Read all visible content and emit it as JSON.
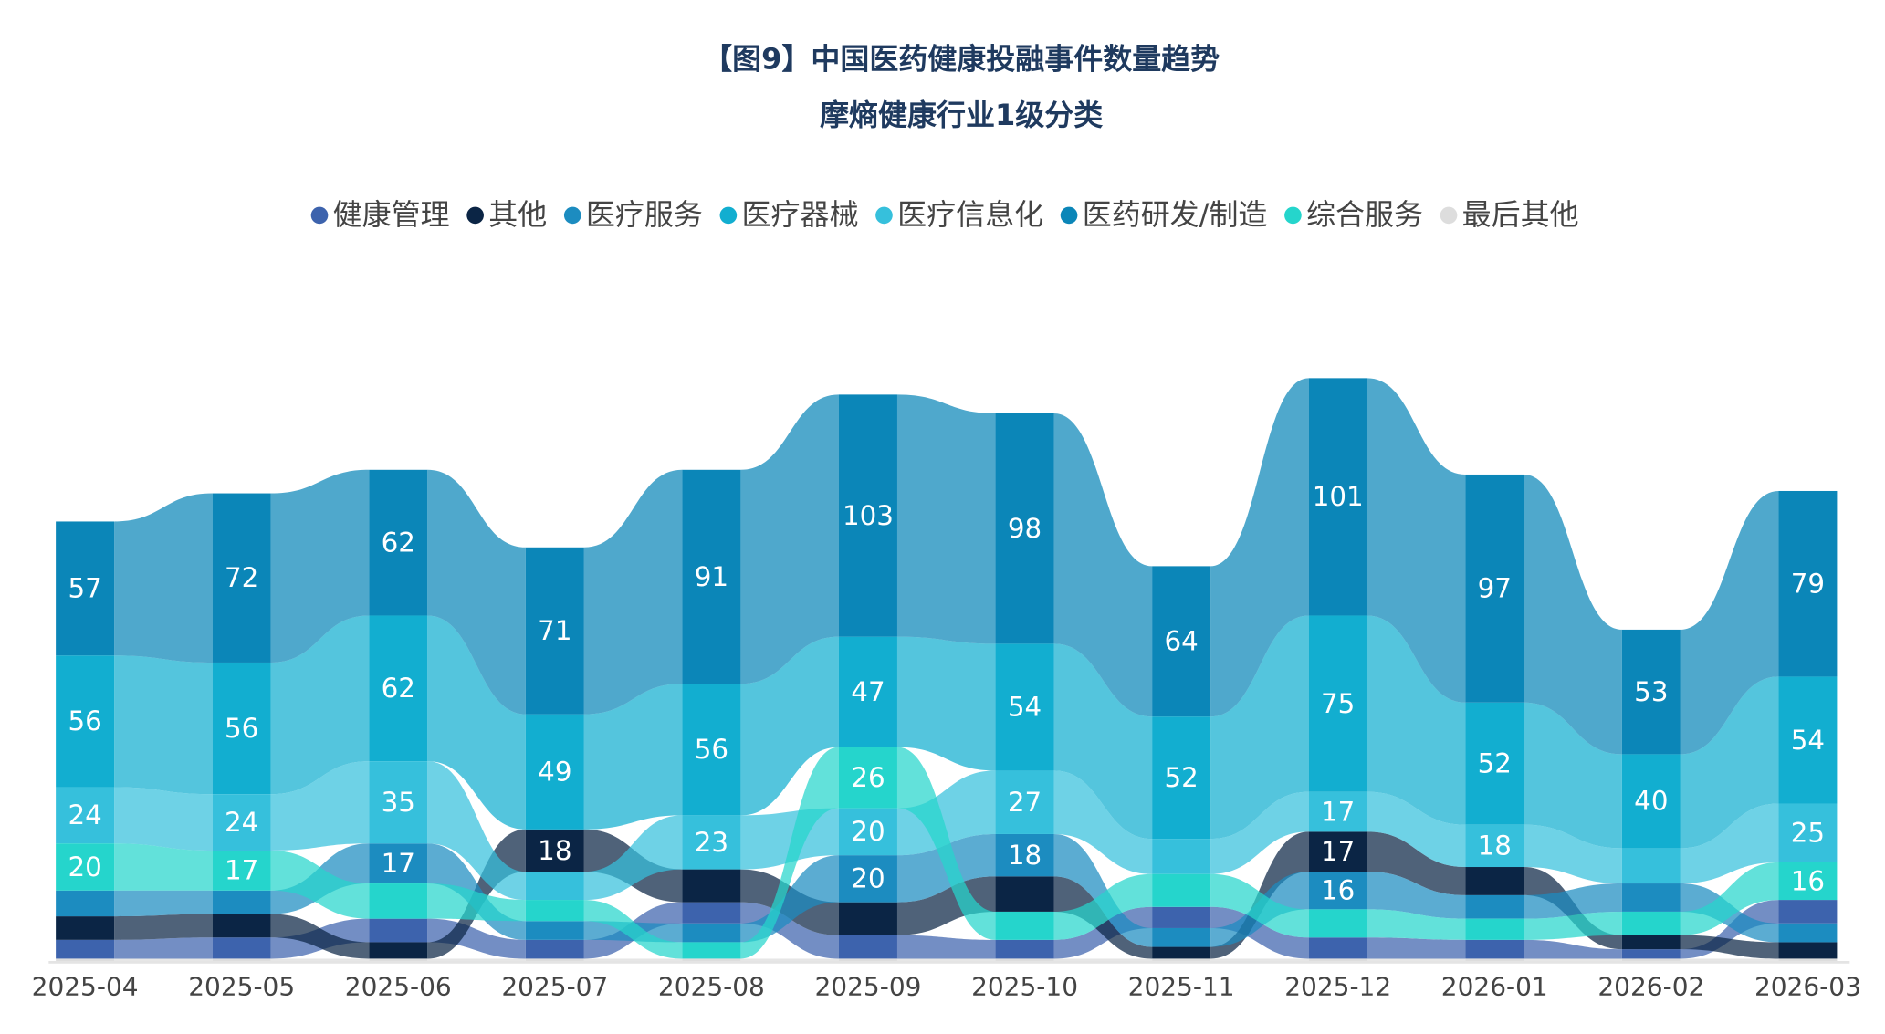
{
  "chart_data": {
    "type": "ribbon",
    "title": "【图9】中国医药健康投融事件数量趋势",
    "subtitle": "摩熵健康行业1级分类",
    "categories": [
      "2025-04",
      "2025-05",
      "2025-06",
      "2025-07",
      "2025-08",
      "2025-09",
      "2025-10",
      "2025-11",
      "2025-12",
      "2026-01",
      "2026-02",
      "2026-03"
    ],
    "ylim": [
      0,
      250
    ],
    "series": [
      {
        "name": "健康管理",
        "color": "#3d63ad",
        "values": [
          8,
          9,
          10,
          8,
          9,
          10,
          8,
          9,
          9,
          8,
          4,
          10
        ]
      },
      {
        "name": "其他",
        "color": "#0b2545",
        "values": [
          10,
          10,
          7,
          18,
          14,
          14,
          15,
          5,
          17,
          12,
          6,
          7
        ]
      },
      {
        "name": "医疗服务",
        "color": "#1c8cc0",
        "values": [
          11,
          10,
          17,
          8,
          8,
          20,
          18,
          8,
          16,
          10,
          12,
          8
        ]
      },
      {
        "name": "医疗器械",
        "color": "#12aed0",
        "values": [
          56,
          56,
          62,
          49,
          56,
          47,
          54,
          52,
          75,
          52,
          40,
          54
        ]
      },
      {
        "name": "医疗信息化",
        "color": "#36c0dc",
        "values": [
          24,
          24,
          35,
          12,
          23,
          20,
          27,
          15,
          17,
          18,
          15,
          25
        ]
      },
      {
        "name": "医药研发/制造",
        "color": "#0b86b8",
        "values": [
          57,
          72,
          62,
          71,
          91,
          103,
          98,
          64,
          101,
          97,
          53,
          79
        ]
      },
      {
        "name": "综合服务",
        "color": "#25d5cc",
        "values": [
          20,
          17,
          15,
          9,
          7,
          26,
          12,
          14,
          12,
          9,
          10,
          16
        ]
      },
      {
        "name": "最后其他",
        "color": "#dddddd",
        "values": [
          1,
          1,
          1,
          1,
          1,
          1,
          1,
          1,
          1,
          1,
          1,
          1
        ]
      }
    ]
  }
}
